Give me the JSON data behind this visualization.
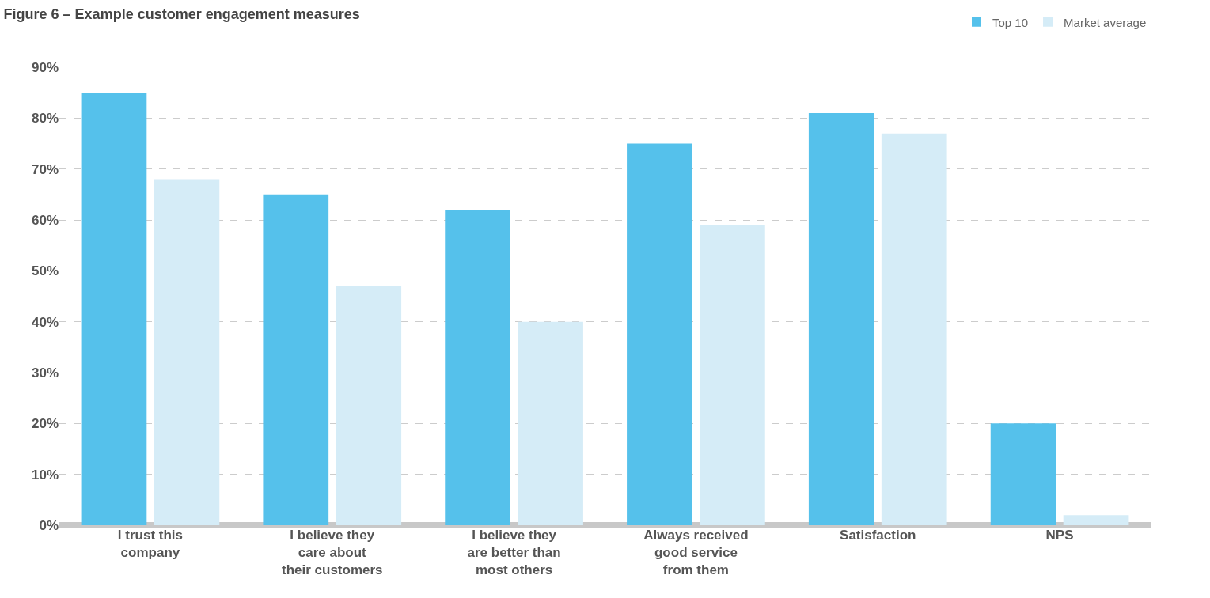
{
  "chart_data": {
    "type": "bar",
    "title": "Figure 6 – Example customer engagement measures",
    "categories": [
      "I trust this\ncompany",
      "I believe they\ncare about\ntheir customers",
      "I believe they\nare better than\nmost others",
      "Always received\ngood service\nfrom them",
      "Satisfaction",
      "NPS"
    ],
    "series": [
      {
        "name": "Top 10",
        "color": "#55c1eb",
        "values": [
          85,
          65,
          62,
          75,
          81,
          20
        ]
      },
      {
        "name": "Market average",
        "color": "#d5ecf7",
        "values": [
          68,
          47,
          40,
          59,
          77,
          2
        ]
      }
    ],
    "ylim": [
      0,
      90
    ],
    "yticks": [
      {
        "value": 0,
        "label": "0%"
      },
      {
        "value": 10,
        "label": "10%"
      },
      {
        "value": 20,
        "label": "20%"
      },
      {
        "value": 30,
        "label": "30%"
      },
      {
        "value": 40,
        "label": "40%"
      },
      {
        "value": 50,
        "label": "50%"
      },
      {
        "value": 60,
        "label": "60%"
      },
      {
        "value": 70,
        "label": "70%"
      },
      {
        "value": 80,
        "label": "80%"
      },
      {
        "value": 90,
        "label": "90%"
      }
    ],
    "grid": "y",
    "legend": "top right"
  }
}
